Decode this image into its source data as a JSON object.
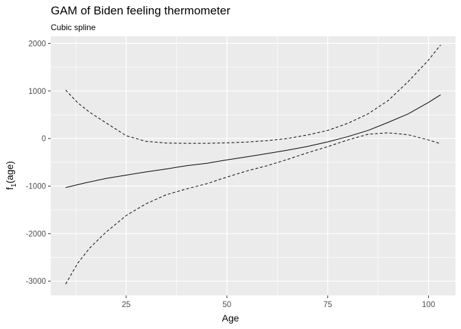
{
  "chart_data": {
    "type": "line",
    "title": "GAM of Biden feeling thermometer",
    "subtitle": "Cubic spline",
    "xlabel": "Age",
    "ylabel_main": "f",
    "ylabel_sub": "1",
    "ylabel_arg": "(age)",
    "xlim": [
      6.3,
      106.7
    ],
    "ylim": [
      -3300,
      2150
    ],
    "x_ticks": [
      25,
      50,
      75,
      100
    ],
    "y_ticks": [
      -3000,
      -2000,
      -1000,
      0,
      1000,
      2000
    ],
    "grid": true,
    "background": "#ebebeb",
    "grid_color": "#ffffff",
    "line_color": "#000000",
    "series": [
      {
        "style": "solid",
        "x": [
          10,
          15,
          20,
          25,
          30,
          35,
          40,
          45,
          50,
          55,
          60,
          65,
          70,
          75,
          80,
          85,
          90,
          95,
          100,
          103
        ],
        "y": [
          -1030,
          -930,
          -840,
          -770,
          -700,
          -640,
          -570,
          -520,
          -450,
          -385,
          -315,
          -245,
          -165,
          -70,
          40,
          170,
          340,
          520,
          760,
          920
        ]
      },
      {
        "style": "dashed",
        "x": [
          10,
          13,
          16,
          20,
          25,
          30,
          35,
          40,
          45,
          50,
          55,
          60,
          65,
          70,
          75,
          80,
          85,
          90,
          95,
          100,
          103
        ],
        "y": [
          1020,
          750,
          550,
          330,
          60,
          -60,
          -95,
          -100,
          -100,
          -90,
          -75,
          -45,
          0,
          75,
          170,
          320,
          520,
          800,
          1200,
          1650,
          1970
        ]
      },
      {
        "style": "dashed",
        "x": [
          10,
          13,
          16,
          20,
          25,
          30,
          35,
          40,
          45,
          50,
          55,
          60,
          65,
          70,
          75,
          80,
          85,
          90,
          95,
          100,
          103
        ],
        "y": [
          -3060,
          -2620,
          -2300,
          -1970,
          -1620,
          -1370,
          -1180,
          -1060,
          -950,
          -810,
          -680,
          -570,
          -440,
          -300,
          -170,
          -30,
          90,
          120,
          80,
          -30,
          -110
        ]
      }
    ]
  }
}
